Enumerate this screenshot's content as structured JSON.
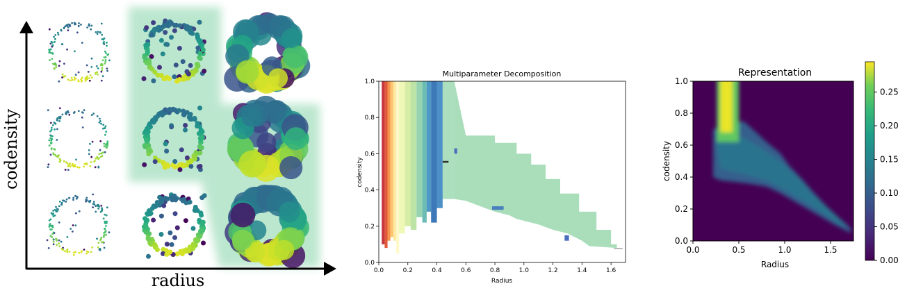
{
  "chart_data": [
    {
      "type": "scatter",
      "xlabel": "radius",
      "ylabel": "codensity",
      "grid": {
        "rows": 3,
        "cols": 3
      },
      "colormap": "viridis",
      "highlight_color": "#a6dfbf"
    },
    {
      "type": "bar",
      "title": "Multiparameter Decomposition",
      "xlabel": "Radius",
      "ylabel": "codensity",
      "xlim": [
        0,
        1.7
      ],
      "ylim": [
        0,
        1.0
      ],
      "xticks": [
        "0.0",
        "0.2",
        "0.4",
        "0.6",
        "0.8",
        "1.0",
        "1.2",
        "1.4",
        "1.6"
      ],
      "yticks": [
        "0.0",
        "0.2",
        "0.4",
        "0.6",
        "0.8",
        "1.0"
      ],
      "intervals": [
        {
          "x0": 0.0,
          "x1": 0.6,
          "y0": 0.0,
          "y1": 1.0,
          "color": "#ffffff"
        },
        {
          "x0": 0.02,
          "x1": 0.04,
          "y0": 0.1,
          "y1": 1.0,
          "color": "#c0272d"
        },
        {
          "x0": 0.04,
          "x1": 0.06,
          "y0": 0.08,
          "y1": 1.0,
          "color": "#e04a2b"
        },
        {
          "x0": 0.06,
          "x1": 0.08,
          "y0": 0.12,
          "y1": 1.0,
          "color": "#f38a3c"
        },
        {
          "x0": 0.08,
          "x1": 0.1,
          "y0": 0.14,
          "y1": 1.0,
          "color": "#fcbf63"
        },
        {
          "x0": 0.1,
          "x1": 0.12,
          "y0": 0.12,
          "y1": 1.0,
          "color": "#fee79a"
        },
        {
          "x0": 0.12,
          "x1": 0.14,
          "y0": 0.05,
          "y1": 1.0,
          "color": "#fff7c3"
        },
        {
          "x0": 0.14,
          "x1": 0.18,
          "y0": 0.16,
          "y1": 1.0,
          "color": "#eef7b0"
        },
        {
          "x0": 0.18,
          "x1": 0.22,
          "y0": 0.2,
          "y1": 1.0,
          "color": "#d4ec9e"
        },
        {
          "x0": 0.22,
          "x1": 0.26,
          "y0": 0.18,
          "y1": 1.0,
          "color": "#b8e1a0"
        },
        {
          "x0": 0.26,
          "x1": 0.3,
          "y0": 0.25,
          "y1": 1.0,
          "color": "#8dcfa9"
        },
        {
          "x0": 0.3,
          "x1": 0.33,
          "y0": 0.22,
          "y1": 1.0,
          "color": "#5fb6b0"
        },
        {
          "x0": 0.33,
          "x1": 0.36,
          "y0": 0.28,
          "y1": 1.0,
          "color": "#3f8fc0"
        },
        {
          "x0": 0.36,
          "x1": 0.4,
          "y0": 0.22,
          "y1": 1.0,
          "color": "#2d6cb2"
        },
        {
          "x0": 0.4,
          "x1": 0.44,
          "y0": 0.3,
          "y1": 1.0,
          "color": "#3d87c2"
        },
        {
          "x0": 0.44,
          "x1": 0.52,
          "y0": 0.35,
          "y1": 1.0,
          "color": "#a5dcb7"
        }
      ],
      "envelope": {
        "x": [
          0.52,
          0.6,
          0.8,
          0.8,
          0.95,
          0.95,
          1.05,
          1.05,
          1.15,
          1.15,
          1.25,
          1.25,
          1.38,
          1.38,
          1.5,
          1.5,
          1.6,
          1.6,
          1.64,
          1.64,
          1.45,
          1.4,
          1.3,
          1.2,
          1.1,
          1.0,
          0.95,
          0.9,
          0.8,
          0.7,
          0.6,
          0.52
        ],
        "y": [
          1.0,
          0.7,
          0.7,
          0.66,
          0.66,
          0.6,
          0.6,
          0.54,
          0.54,
          0.46,
          0.46,
          0.38,
          0.38,
          0.28,
          0.28,
          0.18,
          0.18,
          0.1,
          0.1,
          0.08,
          0.09,
          0.12,
          0.16,
          0.18,
          0.21,
          0.23,
          0.24,
          0.26,
          0.28,
          0.31,
          0.34,
          0.35
        ]
      },
      "envelope_color": "#a5dcb7",
      "small_marks": [
        {
          "x0": 0.78,
          "x1": 0.86,
          "y0": 0.29,
          "y1": 0.31,
          "color": "#4a7fbf"
        },
        {
          "x0": 1.28,
          "x1": 1.31,
          "y0": 0.12,
          "y1": 0.15,
          "color": "#4a6fbf"
        },
        {
          "x0": 0.52,
          "x1": 0.54,
          "y0": 0.6,
          "y1": 0.63,
          "color": "#4a6fbf"
        },
        {
          "x0": 0.44,
          "x1": 0.48,
          "y0": 0.55,
          "y1": 0.56,
          "color": "#333333"
        },
        {
          "x0": 1.62,
          "x1": 1.68,
          "y0": 0.075,
          "y1": 0.08,
          "color": "#999999"
        }
      ]
    },
    {
      "type": "heatmap",
      "title": "Representation",
      "xlabel": "Radius",
      "ylabel": "codensity",
      "xlim": [
        0,
        1.75
      ],
      "ylim": [
        0,
        1.0
      ],
      "xticks": [
        "0.0",
        "0.5",
        "1.0",
        "1.5"
      ],
      "yticks": [
        "0.0",
        "0.2",
        "0.4",
        "0.6",
        "0.8",
        "1.0"
      ],
      "colorbar": {
        "min": 0.0,
        "max": 0.295,
        "ticks": [
          "0.00",
          "0.05",
          "0.10",
          "0.15",
          "0.20",
          "0.25"
        ]
      },
      "colormap": "viridis"
    }
  ]
}
